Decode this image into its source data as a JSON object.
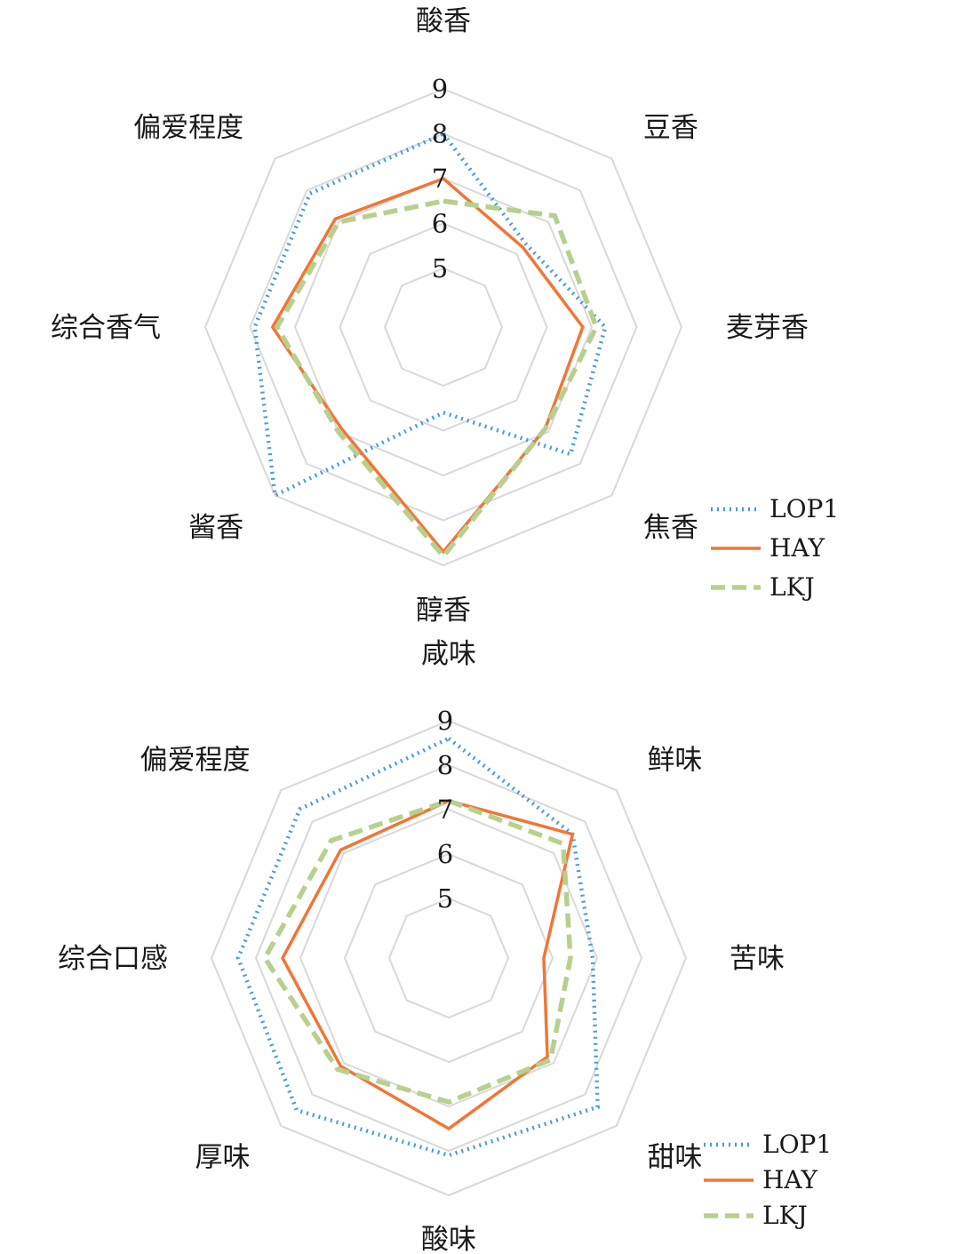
{
  "colors": {
    "LOP1": "#4a9ad8",
    "HAY": "#f07637",
    "LKJ": "#b8d08e",
    "grid": "#d9d9d9"
  },
  "chart_data": [
    {
      "type": "radar",
      "axes": [
        "酸香",
        "豆香",
        "麦芽香",
        "焦香",
        "醇香",
        "酱香",
        "综合香气",
        "偏爱程度"
      ],
      "ticks": [
        "5",
        "6",
        "7",
        "8",
        "9"
      ],
      "rlim": [
        5,
        9
      ],
      "grid": true,
      "legend": "bottom-right",
      "series": [
        {
          "name": "LOP1",
          "style": "dotted",
          "values": [
            8.0,
            6.3,
            7.3,
            7.7,
            5.6,
            9.0,
            7.9,
            7.9
          ]
        },
        {
          "name": "HAY",
          "style": "solid",
          "values": [
            7.0,
            6.2,
            6.8,
            6.9,
            8.7,
            6.9,
            7.5,
            7.1
          ]
        },
        {
          "name": "LKJ",
          "style": "dashed",
          "values": [
            6.5,
            7.2,
            7.1,
            6.9,
            8.8,
            7.0,
            7.4,
            7.0
          ]
        }
      ]
    },
    {
      "type": "radar",
      "axes": [
        "咸味",
        "鲜味",
        "苦味",
        "甜味",
        "酸味",
        "厚味",
        "综合口感",
        "偏爱程度"
      ],
      "ticks": [
        "5",
        "6",
        "7",
        "8",
        "9"
      ],
      "rlim": [
        5,
        9
      ],
      "grid": true,
      "legend": "bottom-right",
      "series": [
        {
          "name": "LOP1",
          "style": "dotted",
          "values": [
            8.6,
            7.6,
            6.9,
            8.4,
            8.1,
            8.5,
            8.4,
            8.4
          ]
        },
        {
          "name": "HAY",
          "style": "solid",
          "values": [
            7.2,
            7.6,
            5.8,
            6.8,
            7.5,
            7.1,
            7.4,
            7.1
          ]
        },
        {
          "name": "LKJ",
          "style": "dashed",
          "values": [
            7.2,
            7.3,
            6.4,
            6.9,
            6.9,
            7.2,
            7.8,
            7.4
          ]
        }
      ]
    }
  ]
}
